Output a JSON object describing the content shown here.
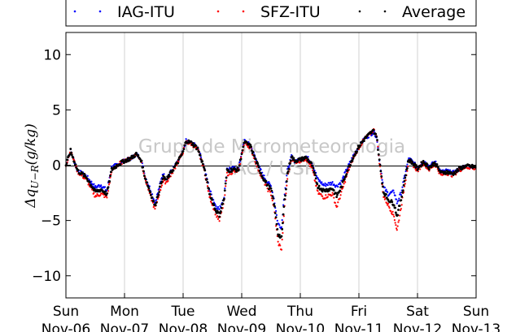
{
  "chart_data": {
    "type": "scatter",
    "ylabel": "Δq_{U−R}(g/kg)",
    "ylim": [
      -12,
      12
    ],
    "yticks": [
      10,
      5,
      0,
      -5,
      -10
    ],
    "ytick_labels": [
      "10",
      "5",
      "0",
      "−5",
      "−10"
    ],
    "xlim": [
      0,
      7
    ],
    "xticks": [
      {
        "day": "Sun",
        "date": "Nov-06"
      },
      {
        "day": "Mon",
        "date": "Nov-07"
      },
      {
        "day": "Tue",
        "date": "Nov-08"
      },
      {
        "day": "Wed",
        "date": "Nov-09"
      },
      {
        "day": "Thu",
        "date": "Nov-10"
      },
      {
        "day": "Fri",
        "date": "Nov-11"
      },
      {
        "day": "Sat",
        "date": "Nov-12"
      },
      {
        "day": "Sun",
        "date": "Nov-13"
      }
    ],
    "grid": "vertical",
    "zero_line": true,
    "legend_placement": "top",
    "watermark": [
      "Grupo de Micrometeorologia",
      "IAG / USP"
    ],
    "series": [
      {
        "name": "IAG-ITU",
        "color": "#0000ff",
        "points": [
          [
            0,
            0.0
          ],
          [
            0.08,
            1.3
          ],
          [
            0.2,
            -0.5
          ],
          [
            0.35,
            -1.0
          ],
          [
            0.5,
            -2.0
          ],
          [
            0.6,
            -1.8
          ],
          [
            0.7,
            -2.3
          ],
          [
            0.78,
            -0.2
          ],
          [
            0.9,
            0.1
          ],
          [
            1.0,
            0.4
          ],
          [
            1.1,
            0.6
          ],
          [
            1.2,
            1.0
          ],
          [
            1.28,
            0.6
          ],
          [
            1.35,
            -1.0
          ],
          [
            1.45,
            -2.3
          ],
          [
            1.52,
            -3.4
          ],
          [
            1.58,
            -2.3
          ],
          [
            1.65,
            -0.8
          ],
          [
            1.72,
            -1.2
          ],
          [
            1.8,
            -0.5
          ],
          [
            1.9,
            0.2
          ],
          [
            2.0,
            1.2
          ],
          [
            2.05,
            2.2
          ],
          [
            2.15,
            2.0
          ],
          [
            2.25,
            1.6
          ],
          [
            2.35,
            0.0
          ],
          [
            2.45,
            -2.2
          ],
          [
            2.55,
            -3.6
          ],
          [
            2.62,
            -4.0
          ],
          [
            2.7,
            -2.8
          ],
          [
            2.75,
            -0.3
          ],
          [
            2.85,
            -0.3
          ],
          [
            2.95,
            -0.3
          ],
          [
            3.0,
            1.2
          ],
          [
            3.05,
            2.2
          ],
          [
            3.15,
            1.8
          ],
          [
            3.25,
            0.4
          ],
          [
            3.35,
            -0.8
          ],
          [
            3.45,
            -1.6
          ],
          [
            3.5,
            -1.9
          ],
          [
            3.55,
            -3.0
          ],
          [
            3.62,
            -5.3
          ],
          [
            3.68,
            -5.6
          ],
          [
            3.72,
            -3.0
          ],
          [
            3.78,
            -0.5
          ],
          [
            3.85,
            0.8
          ],
          [
            3.9,
            0.4
          ],
          [
            4.0,
            0.5
          ],
          [
            4.1,
            0.8
          ],
          [
            4.2,
            0.2
          ],
          [
            4.3,
            -1.3
          ],
          [
            4.4,
            -1.8
          ],
          [
            4.55,
            -1.6
          ],
          [
            4.62,
            -1.9
          ],
          [
            4.7,
            -1.5
          ],
          [
            4.8,
            -0.3
          ],
          [
            4.9,
            0.8
          ],
          [
            5.0,
            1.7
          ],
          [
            5.1,
            2.4
          ],
          [
            5.2,
            2.8
          ],
          [
            5.25,
            3.0
          ],
          [
            5.3,
            2.6
          ],
          [
            5.35,
            0.5
          ],
          [
            5.42,
            -2.0
          ],
          [
            5.5,
            -2.6
          ],
          [
            5.6,
            -2.4
          ],
          [
            5.65,
            -3.4
          ],
          [
            5.72,
            -2.5
          ],
          [
            5.8,
            -0.5
          ],
          [
            5.85,
            0.6
          ],
          [
            5.9,
            0.4
          ],
          [
            6.0,
            -0.2
          ],
          [
            6.1,
            0.4
          ],
          [
            6.2,
            -0.1
          ],
          [
            6.3,
            0.3
          ],
          [
            6.4,
            -0.6
          ],
          [
            6.5,
            -0.5
          ],
          [
            6.6,
            -0.7
          ],
          [
            6.7,
            -0.4
          ],
          [
            6.8,
            -0.1
          ],
          [
            6.9,
            -0.1
          ],
          [
            7.0,
            -0.2
          ]
        ]
      },
      {
        "name": "SFZ-ITU",
        "color": "#ff0000",
        "points": [
          [
            0,
            0.0
          ],
          [
            0.08,
            1.3
          ],
          [
            0.2,
            -0.6
          ],
          [
            0.35,
            -1.3
          ],
          [
            0.5,
            -2.8
          ],
          [
            0.6,
            -2.6
          ],
          [
            0.7,
            -2.9
          ],
          [
            0.78,
            -0.5
          ],
          [
            0.9,
            0.1
          ],
          [
            1.0,
            0.4
          ],
          [
            1.1,
            0.6
          ],
          [
            1.2,
            1.0
          ],
          [
            1.28,
            0.5
          ],
          [
            1.35,
            -1.2
          ],
          [
            1.45,
            -2.9
          ],
          [
            1.52,
            -4.0
          ],
          [
            1.58,
            -2.8
          ],
          [
            1.65,
            -1.5
          ],
          [
            1.72,
            -1.5
          ],
          [
            1.8,
            -0.8
          ],
          [
            1.9,
            0.2
          ],
          [
            2.0,
            1.2
          ],
          [
            2.05,
            2.1
          ],
          [
            2.15,
            1.9
          ],
          [
            2.25,
            1.4
          ],
          [
            2.35,
            -0.2
          ],
          [
            2.45,
            -2.8
          ],
          [
            2.55,
            -4.3
          ],
          [
            2.62,
            -5.0
          ],
          [
            2.7,
            -3.3
          ],
          [
            2.75,
            -0.8
          ],
          [
            2.85,
            -0.6
          ],
          [
            2.95,
            -0.5
          ],
          [
            3.0,
            1.0
          ],
          [
            3.05,
            2.0
          ],
          [
            3.15,
            1.6
          ],
          [
            3.25,
            0.1
          ],
          [
            3.35,
            -1.2
          ],
          [
            3.45,
            -2.2
          ],
          [
            3.5,
            -2.6
          ],
          [
            3.55,
            -3.8
          ],
          [
            3.62,
            -7.0
          ],
          [
            3.68,
            -7.6
          ],
          [
            3.72,
            -4.5
          ],
          [
            3.78,
            -1.2
          ],
          [
            3.85,
            0.7
          ],
          [
            3.9,
            0.3
          ],
          [
            4.0,
            0.4
          ],
          [
            4.1,
            0.6
          ],
          [
            4.2,
            -0.3
          ],
          [
            4.3,
            -2.5
          ],
          [
            4.4,
            -2.9
          ],
          [
            4.55,
            -2.6
          ],
          [
            4.62,
            -3.8
          ],
          [
            4.7,
            -2.5
          ],
          [
            4.8,
            -0.8
          ],
          [
            4.9,
            0.6
          ],
          [
            5.0,
            1.6
          ],
          [
            5.1,
            2.4
          ],
          [
            5.2,
            2.9
          ],
          [
            5.25,
            3.2
          ],
          [
            5.3,
            2.8
          ],
          [
            5.35,
            0.3
          ],
          [
            5.42,
            -2.8
          ],
          [
            5.5,
            -3.6
          ],
          [
            5.6,
            -4.6
          ],
          [
            5.65,
            -5.9
          ],
          [
            5.72,
            -3.8
          ],
          [
            5.8,
            -1.2
          ],
          [
            5.85,
            0.4
          ],
          [
            5.9,
            0.2
          ],
          [
            6.0,
            -0.5
          ],
          [
            6.1,
            0.2
          ],
          [
            6.2,
            -0.4
          ],
          [
            6.3,
            0.1
          ],
          [
            6.4,
            -0.9
          ],
          [
            6.5,
            -0.7
          ],
          [
            6.6,
            -0.9
          ],
          [
            6.7,
            -0.5
          ],
          [
            6.8,
            -0.2
          ],
          [
            6.9,
            -0.2
          ],
          [
            7.0,
            -0.3
          ]
        ]
      },
      {
        "name": "Average",
        "color": "#000000",
        "points": [
          [
            0,
            0.0
          ],
          [
            0.08,
            1.3
          ],
          [
            0.2,
            -0.5
          ],
          [
            0.35,
            -1.1
          ],
          [
            0.5,
            -2.4
          ],
          [
            0.6,
            -2.2
          ],
          [
            0.7,
            -2.6
          ],
          [
            0.78,
            -0.4
          ],
          [
            0.9,
            0.1
          ],
          [
            1.0,
            0.4
          ],
          [
            1.1,
            0.6
          ],
          [
            1.2,
            1.0
          ],
          [
            1.28,
            0.5
          ],
          [
            1.35,
            -1.1
          ],
          [
            1.45,
            -2.6
          ],
          [
            1.52,
            -3.7
          ],
          [
            1.58,
            -2.5
          ],
          [
            1.65,
            -1.1
          ],
          [
            1.72,
            -1.3
          ],
          [
            1.8,
            -0.6
          ],
          [
            1.9,
            0.2
          ],
          [
            2.0,
            1.2
          ],
          [
            2.05,
            2.2
          ],
          [
            2.15,
            2.0
          ],
          [
            2.25,
            1.5
          ],
          [
            2.35,
            -0.1
          ],
          [
            2.45,
            -2.5
          ],
          [
            2.55,
            -4.0
          ],
          [
            2.62,
            -4.5
          ],
          [
            2.7,
            -3.0
          ],
          [
            2.75,
            -0.5
          ],
          [
            2.85,
            -0.4
          ],
          [
            2.95,
            -0.4
          ],
          [
            3.0,
            1.1
          ],
          [
            3.05,
            2.1
          ],
          [
            3.15,
            1.7
          ],
          [
            3.25,
            0.3
          ],
          [
            3.35,
            -1.0
          ],
          [
            3.45,
            -1.9
          ],
          [
            3.5,
            -2.2
          ],
          [
            3.55,
            -3.4
          ],
          [
            3.62,
            -6.2
          ],
          [
            3.68,
            -6.6
          ],
          [
            3.72,
            -3.8
          ],
          [
            3.78,
            -0.8
          ],
          [
            3.85,
            0.8
          ],
          [
            3.9,
            0.4
          ],
          [
            4.0,
            0.5
          ],
          [
            4.1,
            0.7
          ],
          [
            4.2,
            0.0
          ],
          [
            4.3,
            -1.9
          ],
          [
            4.4,
            -2.3
          ],
          [
            4.55,
            -2.1
          ],
          [
            4.62,
            -2.8
          ],
          [
            4.7,
            -2.0
          ],
          [
            4.8,
            -0.5
          ],
          [
            4.9,
            0.7
          ],
          [
            5.0,
            1.7
          ],
          [
            5.1,
            2.4
          ],
          [
            5.2,
            2.9
          ],
          [
            5.25,
            3.1
          ],
          [
            5.3,
            2.7
          ],
          [
            5.35,
            0.4
          ],
          [
            5.42,
            -2.4
          ],
          [
            5.5,
            -3.1
          ],
          [
            5.6,
            -3.5
          ],
          [
            5.65,
            -4.6
          ],
          [
            5.72,
            -3.1
          ],
          [
            5.8,
            -0.8
          ],
          [
            5.85,
            0.5
          ],
          [
            5.9,
            0.3
          ],
          [
            6.0,
            -0.3
          ],
          [
            6.1,
            0.3
          ],
          [
            6.2,
            -0.2
          ],
          [
            6.3,
            0.2
          ],
          [
            6.4,
            -0.7
          ],
          [
            6.5,
            -0.6
          ],
          [
            6.6,
            -0.8
          ],
          [
            6.7,
            -0.4
          ],
          [
            6.8,
            -0.1
          ],
          [
            6.9,
            -0.1
          ],
          [
            7.0,
            -0.2
          ]
        ]
      }
    ]
  }
}
